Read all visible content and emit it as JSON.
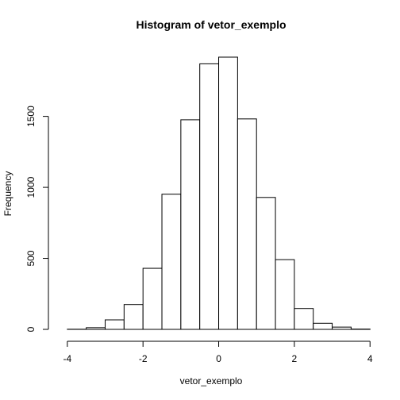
{
  "chart_data": {
    "type": "bar",
    "title": "Histogram of vetor_exemplo",
    "xlabel": "vetor_exemplo",
    "ylabel": "Frequency",
    "bin_edges": [
      -4,
      -3.5,
      -3,
      -2.5,
      -2,
      -1.5,
      -1,
      -0.5,
      0,
      0.5,
      1,
      1.5,
      2,
      2.5,
      3,
      3.5,
      4
    ],
    "values": [
      1,
      12,
      67,
      175,
      430,
      952,
      1476,
      1870,
      1917,
      1482,
      929,
      491,
      147,
      43,
      16,
      2
    ],
    "xlim": [
      -4.5,
      4.1
    ],
    "ylim": [
      0,
      1917
    ],
    "x_ticks": [
      -4,
      -2,
      0,
      2,
      4
    ],
    "y_ticks": [
      0,
      500,
      1000,
      1500
    ],
    "x_tick_labels": [
      "-4",
      "-2",
      "0",
      "2",
      "4"
    ],
    "y_tick_labels": [
      "0",
      "500",
      "1000",
      "1500"
    ],
    "grid": false,
    "legend": "none",
    "bar_fill": "#ffffff",
    "stroke_color": "#000000"
  }
}
